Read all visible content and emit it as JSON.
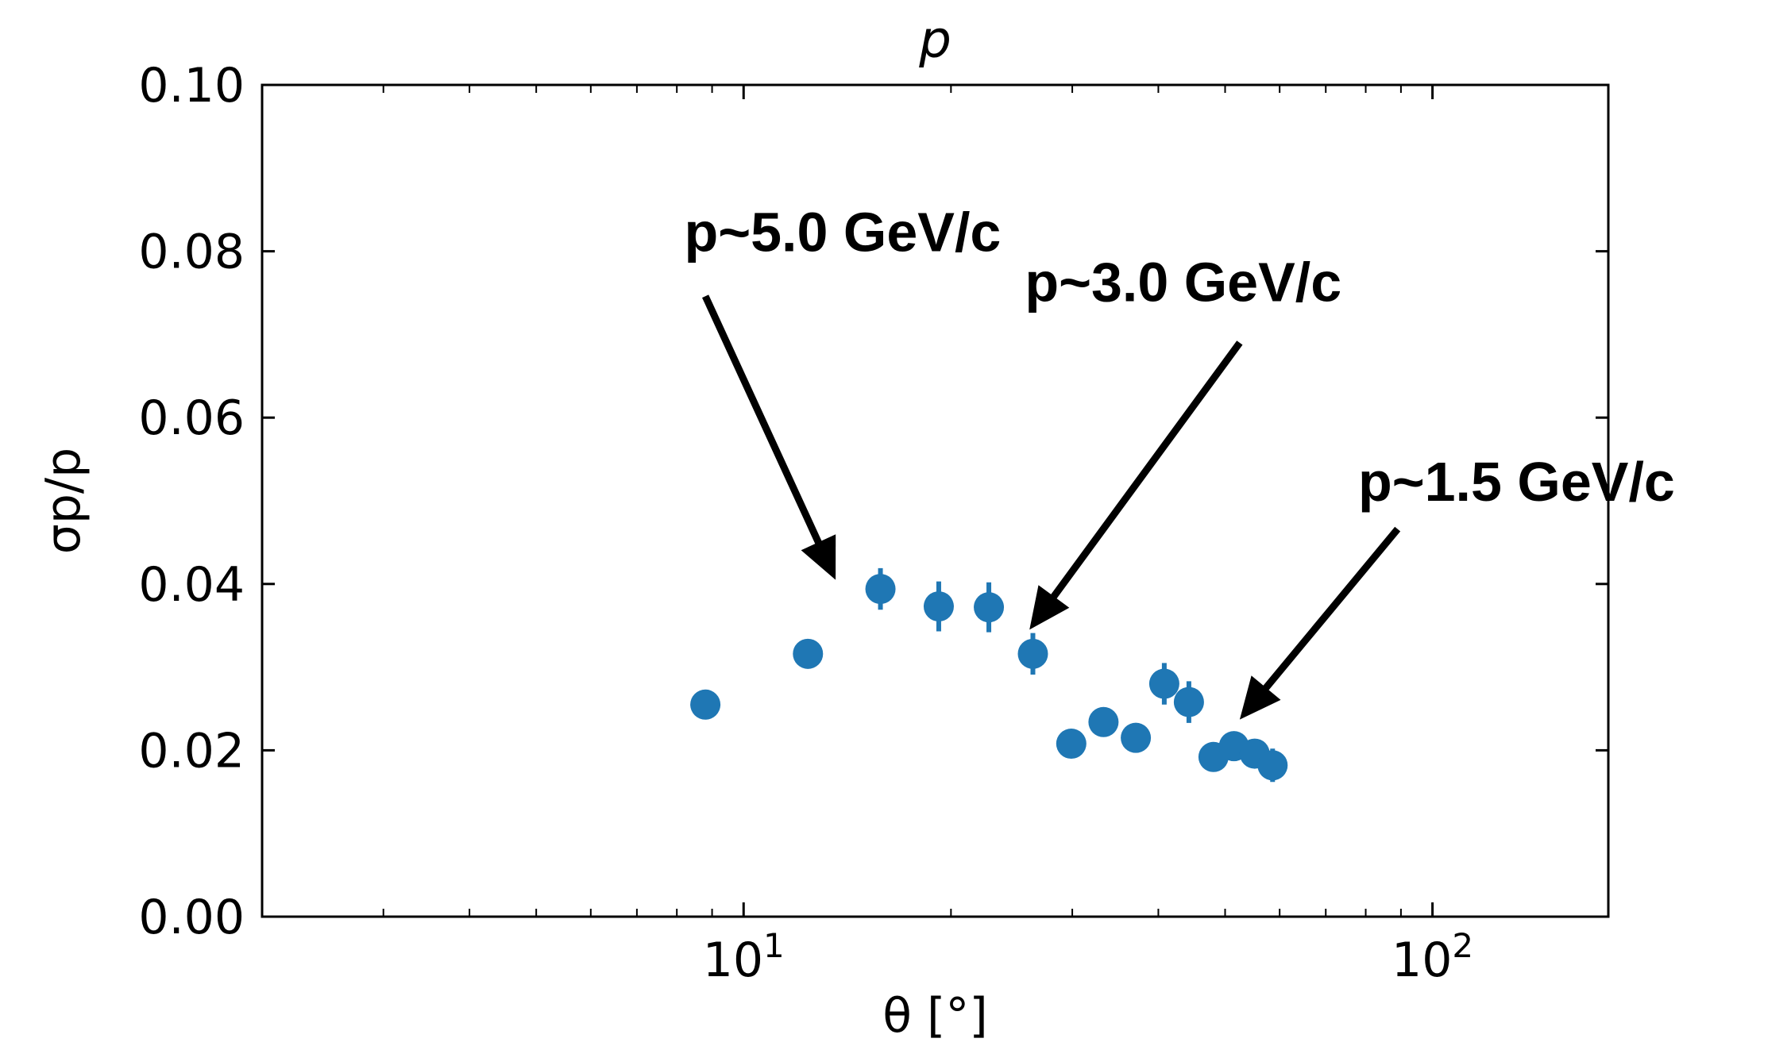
{
  "chart_data": {
    "type": "scatter",
    "title": "p",
    "xlabel": "θ [°]",
    "ylabel": "σp/p",
    "xscale": "log",
    "xlim": [
      2,
      180
    ],
    "ylim": [
      0.0,
      0.1
    ],
    "xticks": [
      {
        "value": 10,
        "base": "10",
        "exp": "1"
      },
      {
        "value": 100,
        "base": "10",
        "exp": "2"
      }
    ],
    "yticks": [
      {
        "value": 0.0,
        "label": "0.00"
      },
      {
        "value": 0.02,
        "label": "0.02"
      },
      {
        "value": 0.04,
        "label": "0.04"
      },
      {
        "value": 0.06,
        "label": "0.06"
      },
      {
        "value": 0.08,
        "label": "0.08"
      },
      {
        "value": 0.1,
        "label": "0.10"
      }
    ],
    "grid": false,
    "marker_color": "#1f77b4",
    "series": [
      {
        "points": [
          {
            "x": 8.8,
            "y": 0.0255,
            "yerr": 0.0008
          },
          {
            "x": 12.4,
            "y": 0.0316,
            "yerr": 0.0008
          },
          {
            "x": 15.8,
            "y": 0.0394,
            "yerr": 0.0025
          },
          {
            "x": 19.2,
            "y": 0.0373,
            "yerr": 0.003
          },
          {
            "x": 22.7,
            "y": 0.0372,
            "yerr": 0.003
          },
          {
            "x": 26.3,
            "y": 0.0316,
            "yerr": 0.0025
          },
          {
            "x": 29.9,
            "y": 0.0208,
            "yerr": 0.001
          },
          {
            "x": 33.3,
            "y": 0.0234,
            "yerr": 0.0015
          },
          {
            "x": 37.1,
            "y": 0.0215,
            "yerr": 0.001
          },
          {
            "x": 40.8,
            "y": 0.028,
            "yerr": 0.0025
          },
          {
            "x": 44.3,
            "y": 0.0258,
            "yerr": 0.0025
          },
          {
            "x": 48.1,
            "y": 0.0192,
            "yerr": 0.0015
          },
          {
            "x": 51.5,
            "y": 0.0205,
            "yerr": 0.0015
          },
          {
            "x": 55.2,
            "y": 0.0196,
            "yerr": 0.0015
          },
          {
            "x": 58.6,
            "y": 0.0182,
            "yerr": 0.002
          }
        ]
      }
    ],
    "annotations": [
      {
        "text": "p~5.0 GeV/c",
        "label_x": 8.2,
        "label_y": 0.08,
        "tail_x": 8.8,
        "tail_y": 0.0746,
        "tip_x": 13.6,
        "tip_y": 0.0405
      },
      {
        "text": "p~3.0 GeV/c",
        "label_x": 25.6,
        "label_y": 0.074,
        "tail_x": 52.5,
        "tail_y": 0.069,
        "tip_x": 26.0,
        "tip_y": 0.0345
      },
      {
        "text": "p~1.5 GeV/c",
        "label_x": 78.0,
        "label_y": 0.05,
        "tail_x": 89.0,
        "tail_y": 0.0466,
        "tip_x": 52.5,
        "tip_y": 0.0237
      }
    ]
  }
}
